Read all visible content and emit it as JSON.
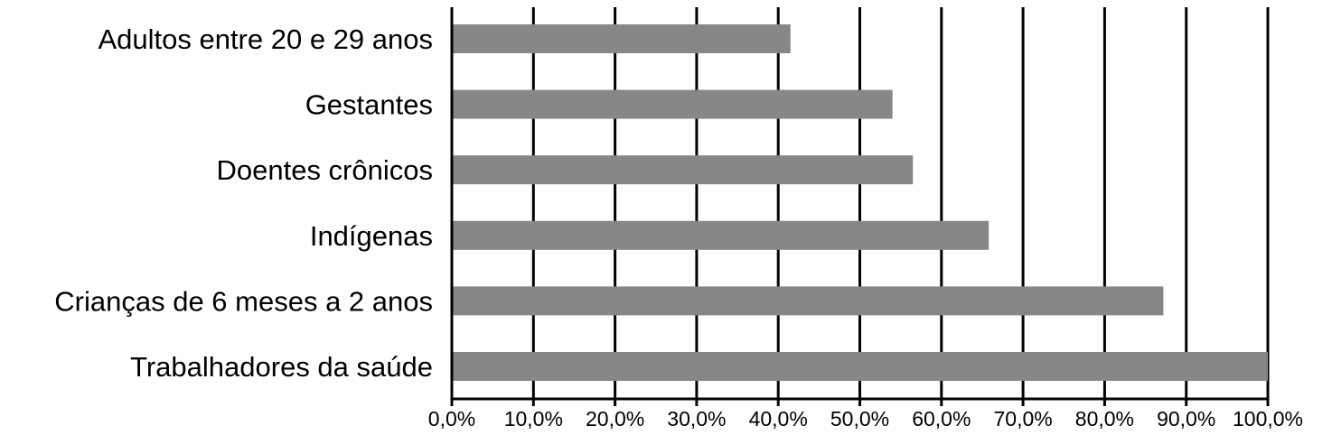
{
  "chart_data": {
    "type": "bar",
    "orientation": "horizontal",
    "categories": [
      "Adultos entre 20 e 29 anos",
      "Gestantes",
      "Doentes crônicos",
      "Indígenas",
      "Crianças de 6 meses a 2 anos",
      "Trabalhadores da saúde"
    ],
    "values": [
      41.5,
      54.0,
      56.5,
      65.8,
      87.2,
      100.0
    ],
    "xlim": [
      0,
      100
    ],
    "xticks": [
      "0,0%",
      "10,0%",
      "20,0%",
      "30,0%",
      "40,0%",
      "50,0%",
      "60,0%",
      "70,0%",
      "80,0%",
      "90,0%",
      "100,0%"
    ],
    "grid": "vertical",
    "bar_color": "#878787",
    "title": "",
    "xlabel": "",
    "ylabel": ""
  }
}
